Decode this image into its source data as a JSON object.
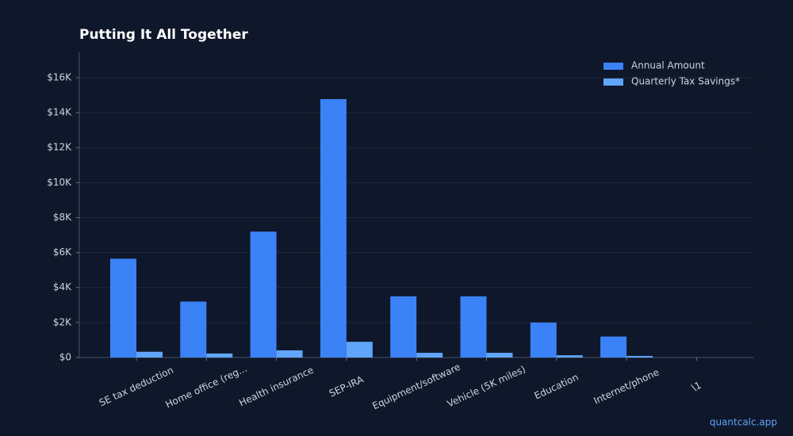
{
  "chart_data": {
    "type": "bar",
    "title": "Putting It All Together",
    "categories": [
      "SE tax deduction",
      "Home office (reg...",
      "Health insurance",
      "SEP-IRA",
      "Equipment/software",
      "Vehicle (5K miles)",
      "Education",
      "Internet/phone",
      "\\1"
    ],
    "series": [
      {
        "name": "Annual Amount",
        "color": "#3b82f6",
        "values": [
          5650,
          3200,
          7200,
          14775,
          3500,
          3500,
          2000,
          1200,
          0
        ]
      },
      {
        "name": "Quarterly Tax Savings*",
        "color": "#60a5fa",
        "values": [
          330,
          230,
          410,
          900,
          270,
          270,
          130,
          90,
          0
        ]
      }
    ],
    "ylim": [
      0,
      17450
    ],
    "yticks": [
      {
        "value": 0,
        "label": "$0"
      },
      {
        "value": 2000,
        "label": "$2K"
      },
      {
        "value": 4000,
        "label": "$4K"
      },
      {
        "value": 6000,
        "label": "$6K"
      },
      {
        "value": 8000,
        "label": "$8K"
      },
      {
        "value": 10000,
        "label": "$10K"
      },
      {
        "value": 12000,
        "label": "$12K"
      },
      {
        "value": 14000,
        "label": "$14K"
      },
      {
        "value": 16000,
        "label": "$16K"
      }
    ],
    "grid": true,
    "legend": "upper right",
    "watermark": "quantcalc.app"
  }
}
